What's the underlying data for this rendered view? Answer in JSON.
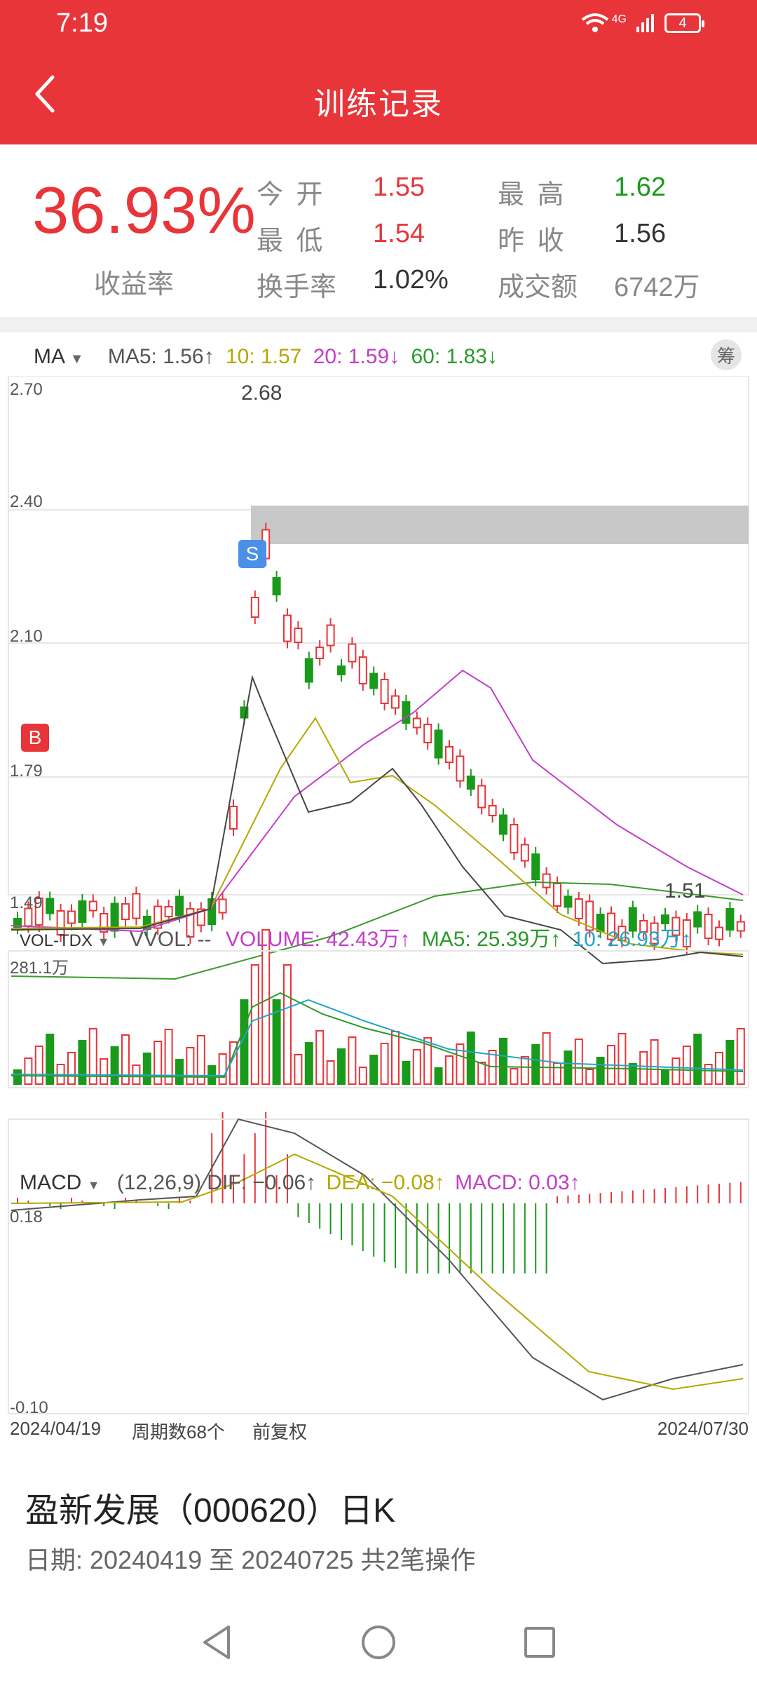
{
  "status": {
    "time": "7:19",
    "battery": "4",
    "net": "4G"
  },
  "header": {
    "title": "训练记录"
  },
  "summary": {
    "yield_value": "36.93%",
    "yield_label": "收益率",
    "today_open_label": "今 开",
    "today_open": "1.55",
    "high_label": "最 高",
    "high": "1.62",
    "low_label": "最 低",
    "low": "1.54",
    "prev_close_label": "昨 收",
    "prev_close": "1.56",
    "turnover_label": "换手率",
    "turnover": "1.02%",
    "amount_label": "成交额",
    "amount": "6742万"
  },
  "ma_legend": {
    "name": "MA",
    "ma5": "MA5: 1.56↑",
    "ma10": "10: 1.57",
    "ma20": "20: 1.59↓",
    "ma60": "60: 1.83↓",
    "chip": "筹"
  },
  "vol_legend": {
    "name": "VOL-TDX",
    "vvol": "VVOL: --",
    "volume": "VOLUME: 42.43万↑",
    "ma5": "MA5: 25.39万↑",
    "ma10": "10: 26.93万↑"
  },
  "macd_legend": {
    "name": "MACD",
    "params": "(12,26,9)",
    "dif": "DIF: −0.06↑",
    "dea": "DEA: −0.08↑",
    "macd": "MACD: 0.03↑"
  },
  "axis": {
    "price_ticks": [
      "2.70",
      "2.40",
      "2.10",
      "1.79",
      "1.49"
    ],
    "vol_top": "281.1万",
    "macd_ticks": [
      "0.18",
      "-0.10"
    ],
    "date_start": "2024/04/19",
    "period": "周期数68个",
    "adjust": "前复权",
    "date_end": "2024/07/30",
    "high_mark": "2.68",
    "low_mark": "1.51",
    "buy_mark": "B",
    "sell_mark": "S"
  },
  "footer": {
    "title": "盈新发展（000620）日K",
    "date_range": "日期: 20240419 至 20240725  共2笔操作"
  },
  "colors": {
    "red": "#e8353a",
    "green": "#1a9a1a"
  }
}
